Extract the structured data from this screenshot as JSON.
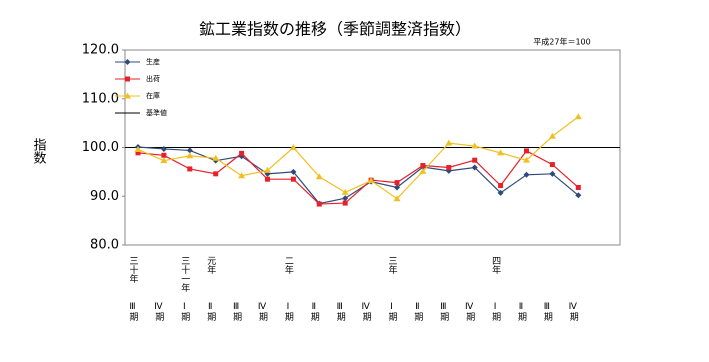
{
  "chart_data": {
    "type": "line",
    "title": "鉱工業指数の推移（季節調整済指数）",
    "note": "平成27年＝100",
    "y_label": "指数",
    "categories": [
      "Ⅲ期",
      "Ⅳ期",
      "Ⅰ期",
      "Ⅱ期",
      "Ⅲ期",
      "Ⅳ期",
      "Ⅰ期",
      "Ⅱ期",
      "Ⅲ期",
      "Ⅳ期",
      "Ⅰ期",
      "Ⅱ期",
      "Ⅲ期",
      "Ⅳ期",
      "Ⅰ期",
      "Ⅱ期",
      "Ⅲ期",
      "Ⅳ期"
    ],
    "year_labels": [
      "三十年",
      null,
      "三十一年",
      "元年",
      null,
      null,
      "二年",
      null,
      null,
      null,
      "三年",
      null,
      null,
      null,
      "四年",
      null,
      null,
      null
    ],
    "series": [
      {
        "name": "生産",
        "color": "#2e4a7a",
        "marker": "diamond",
        "values": [
          100.1,
          99.7,
          99.4,
          97.3,
          98.2,
          94.6,
          95.0,
          88.5,
          89.6,
          93.0,
          91.8,
          96.0,
          95.2,
          95.9,
          90.7,
          94.4,
          94.6,
          90.2
        ]
      },
      {
        "name": "出荷",
        "color": "#e8202a",
        "marker": "square",
        "values": [
          98.9,
          98.4,
          95.6,
          94.6,
          98.8,
          93.5,
          93.5,
          88.4,
          88.6,
          93.3,
          92.8,
          96.3,
          95.9,
          97.4,
          92.2,
          99.3,
          96.5,
          91.8
        ]
      },
      {
        "name": "在庫",
        "color": "#f0c020",
        "marker": "triangle",
        "values": [
          99.6,
          97.3,
          98.3,
          97.8,
          94.2,
          95.3,
          100.0,
          94.0,
          90.8,
          93.2,
          89.5,
          95.1,
          100.9,
          100.3,
          98.9,
          97.4,
          102.3,
          106.3
        ]
      }
    ],
    "baseline": {
      "name": "基準値",
      "value": 100,
      "color": "#000000"
    },
    "ylim": [
      80,
      120
    ],
    "yticks": [
      {
        "value": 80,
        "label": "80.0"
      },
      {
        "value": 90,
        "label": "90.0"
      },
      {
        "value": 100,
        "label": "100.0"
      },
      {
        "value": 110,
        "label": "110.0"
      },
      {
        "value": 120,
        "label": "120.0"
      }
    ]
  }
}
